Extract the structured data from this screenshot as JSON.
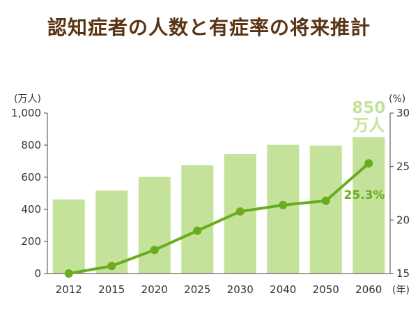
{
  "chart_data": {
    "type": "bar+line",
    "title": "認知症者の人数と有症率の将来推計",
    "categories": [
      "2012",
      "2015",
      "2020",
      "2025",
      "2030",
      "2040",
      "2050",
      "2060"
    ],
    "xunit": "(年)",
    "series": [
      {
        "type": "bar",
        "axis": "left",
        "values": [
          462,
          517,
          602,
          675,
          744,
          802,
          797,
          850
        ],
        "color": "#c5e29a"
      },
      {
        "type": "line",
        "axis": "right",
        "values": [
          15.0,
          15.7,
          17.2,
          19.0,
          20.8,
          21.4,
          21.8,
          25.3
        ],
        "color": "#6aab20"
      }
    ],
    "y_left": {
      "unit": "(万人)",
      "range": [
        0,
        1000
      ],
      "ticks": [
        0,
        200,
        400,
        600,
        800,
        1000
      ],
      "tick_labels": [
        "0",
        "200",
        "400",
        "600",
        "800",
        "1,000"
      ]
    },
    "y_right": {
      "unit": "(%)",
      "range": [
        15,
        30
      ],
      "ticks": [
        15,
        20,
        25,
        30
      ],
      "tick_labels": [
        "15",
        "20",
        "25",
        "30"
      ]
    },
    "annotations": {
      "bar_last_value": "850",
      "bar_last_unit": "万人",
      "line_last_value": "25.3%"
    },
    "grid": false,
    "legend": "none"
  }
}
